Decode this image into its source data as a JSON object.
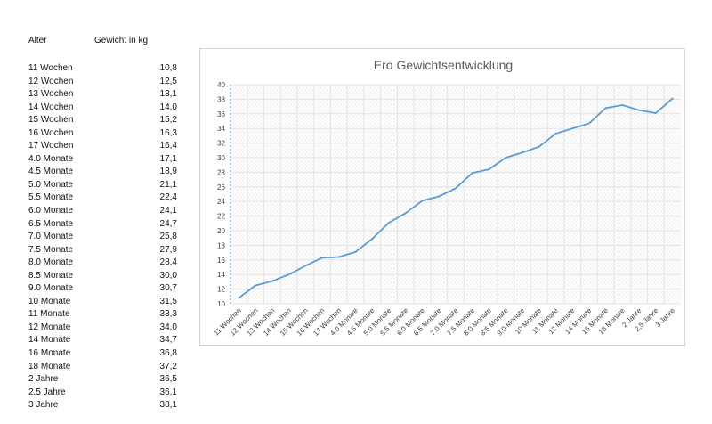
{
  "table": {
    "header_age": "Alter",
    "header_weight": "Gewicht in kg",
    "rows": [
      {
        "age": "11 Wochen",
        "weight": "10,8"
      },
      {
        "age": "12 Wochen",
        "weight": "12,5"
      },
      {
        "age": "13 Wochen",
        "weight": "13,1"
      },
      {
        "age": "14 Wochen",
        "weight": "14,0"
      },
      {
        "age": "15 Wochen",
        "weight": "15,2"
      },
      {
        "age": "16 Wochen",
        "weight": "16,3"
      },
      {
        "age": "17 Wochen",
        "weight": "16,4"
      },
      {
        "age": "4.0 Monate",
        "weight": "17,1"
      },
      {
        "age": "4.5 Monate",
        "weight": "18,9"
      },
      {
        "age": "5.0 Monate",
        "weight": "21,1"
      },
      {
        "age": "5.5 Monate",
        "weight": "22,4"
      },
      {
        "age": "6.0 Monate",
        "weight": "24,1"
      },
      {
        "age": "6.5 Monate",
        "weight": "24,7"
      },
      {
        "age": "7.0 Monate",
        "weight": "25,8"
      },
      {
        "age": "7.5 Monate",
        "weight": "27,9"
      },
      {
        "age": "8.0 Monate",
        "weight": "28,4"
      },
      {
        "age": "8.5 Monate",
        "weight": "30,0"
      },
      {
        "age": "9.0 Monate",
        "weight": "30,7"
      },
      {
        "age": "10 Monate",
        "weight": "31,5"
      },
      {
        "age": "11 Monate",
        "weight": "33,3"
      },
      {
        "age": "12 Monate",
        "weight": "34,0"
      },
      {
        "age": "14 Monate",
        "weight": "34,7"
      },
      {
        "age": "16 Monate",
        "weight": "36,8"
      },
      {
        "age": "18 Monate",
        "weight": "37,2"
      },
      {
        "age": "2 Jahre",
        "weight": "36,5"
      },
      {
        "age": "2,5 Jahre",
        "weight": "36,1"
      },
      {
        "age": "3 Jahre",
        "weight": "38,1"
      }
    ]
  },
  "chart_data": {
    "type": "line",
    "title": "Ero Gewichtsentwicklung",
    "xlabel": "",
    "ylabel": "",
    "ylim": [
      10,
      40
    ],
    "yticks": [
      10,
      12,
      14,
      16,
      18,
      20,
      22,
      24,
      26,
      28,
      30,
      32,
      34,
      36,
      38,
      40
    ],
    "grid": true,
    "categories": [
      "11 Wochen",
      "12 Wochen",
      "13 Wochen",
      "14 Wochen",
      "15 Wochen",
      "16 Wochen",
      "17 Wochen",
      "4.0 Monate",
      "4.5 Monate",
      "5.0 Monate",
      "5.5 Monate",
      "6.0 Monate",
      "6.5 Monate",
      "7.0 Monate",
      "7.5 Monate",
      "8.0 Monate",
      "8.5 Monate",
      "9.0 Monate",
      "10 Monate",
      "11 Monate",
      "12 Monate",
      "14 Monate",
      "16 Monate",
      "18 Monate",
      "2 Jahre",
      "2,5 Jahre",
      "3 Jahre"
    ],
    "series": [
      {
        "values": [
          10.8,
          12.5,
          13.1,
          14.0,
          15.2,
          16.3,
          16.4,
          17.1,
          18.9,
          21.1,
          22.4,
          24.1,
          24.7,
          25.8,
          27.9,
          28.4,
          30.0,
          30.7,
          31.5,
          33.3,
          34.0,
          34.7,
          36.8,
          37.2,
          36.5,
          36.1,
          38.1
        ]
      }
    ],
    "line_color": "#5b9bd5",
    "grid_color": "#e3e3e3"
  }
}
